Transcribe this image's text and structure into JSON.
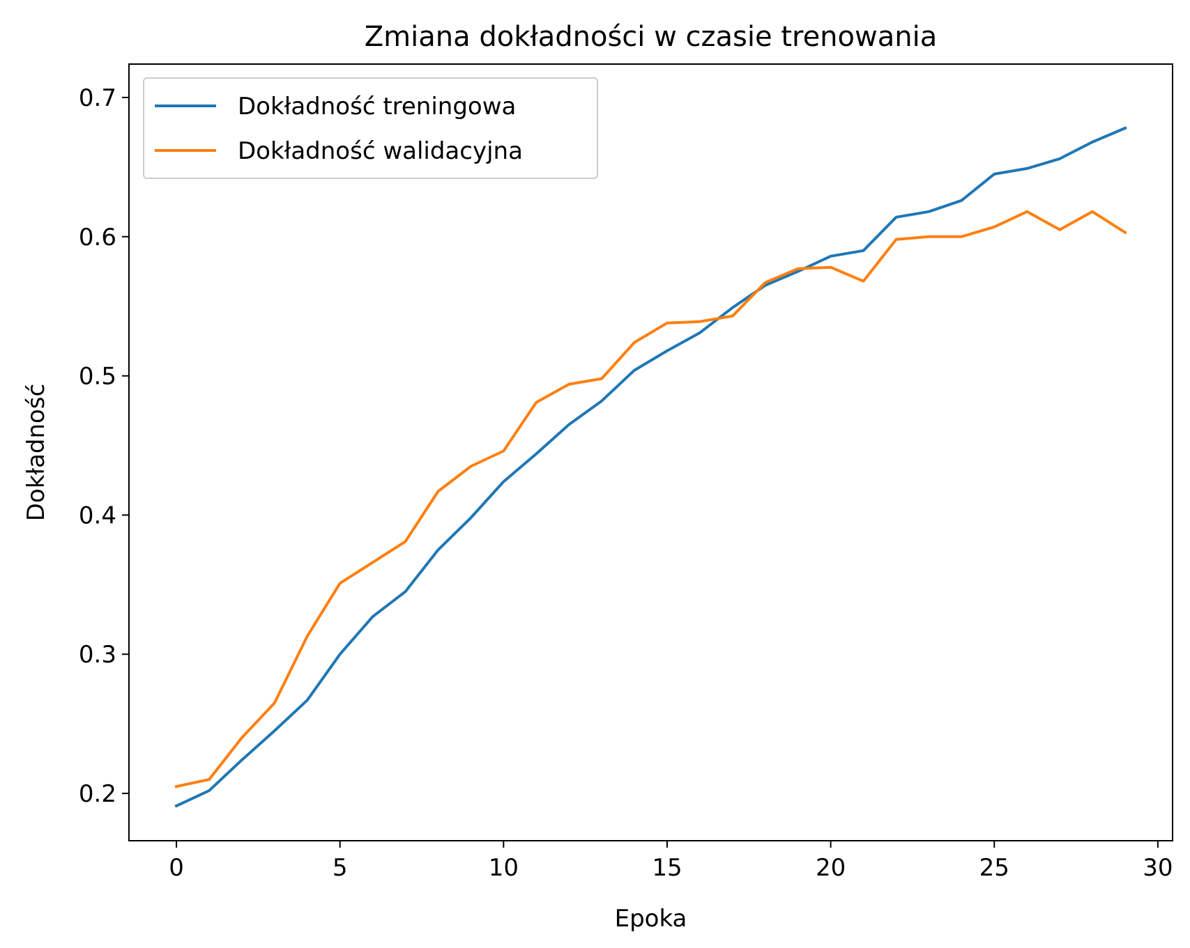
{
  "chart_data": {
    "type": "line",
    "title": "Zmiana dokładności w czasie trenowania",
    "xlabel": "Epoka",
    "ylabel": "Dokładność",
    "x": [
      0,
      1,
      2,
      3,
      4,
      5,
      6,
      7,
      8,
      9,
      10,
      11,
      12,
      13,
      14,
      15,
      16,
      17,
      18,
      19,
      20,
      21,
      22,
      23,
      24,
      25,
      26,
      27,
      28,
      29
    ],
    "xlim": [
      -1.45,
      30.45
    ],
    "ylim": [
      0.166,
      0.724
    ],
    "xticks": [
      0,
      5,
      10,
      15,
      20,
      25,
      30
    ],
    "xtick_labels": [
      "0",
      "5",
      "10",
      "15",
      "20",
      "25",
      "30"
    ],
    "yticks": [
      0.2,
      0.3,
      0.4,
      0.5,
      0.6,
      0.7
    ],
    "ytick_labels": [
      "0.2",
      "0.3",
      "0.4",
      "0.5",
      "0.6",
      "0.7"
    ],
    "grid": false,
    "legend_position": "upper-left",
    "series": [
      {
        "name": "Dokładność treningowa",
        "color": "#1f77b4",
        "values": [
          0.191,
          0.202,
          0.224,
          0.245,
          0.267,
          0.3,
          0.327,
          0.345,
          0.375,
          0.398,
          0.424,
          0.444,
          0.465,
          0.482,
          0.504,
          0.518,
          0.531,
          0.549,
          0.565,
          0.575,
          0.586,
          0.59,
          0.614,
          0.618,
          0.626,
          0.645,
          0.649,
          0.656,
          0.668,
          0.678
        ]
      },
      {
        "name": "Dokładność walidacyjna",
        "color": "#ff7f0e",
        "values": [
          0.205,
          0.21,
          0.24,
          0.265,
          0.313,
          0.351,
          0.366,
          0.381,
          0.417,
          0.435,
          0.446,
          0.481,
          0.494,
          0.498,
          0.524,
          0.538,
          0.539,
          0.543,
          0.567,
          0.577,
          0.578,
          0.568,
          0.598,
          0.6,
          0.6,
          0.607,
          0.618,
          0.605,
          0.618,
          0.603
        ]
      }
    ]
  }
}
